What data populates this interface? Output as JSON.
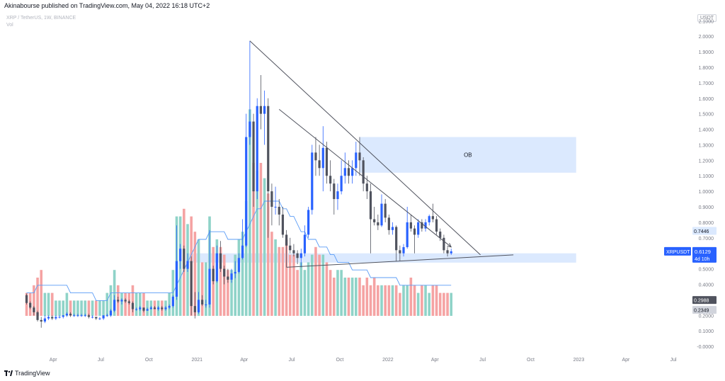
{
  "header": {
    "publisher": "Akinabourse published on TradingView.com, May 04, 2022 16:18 UTC+2",
    "symbol_line": "XRP / TetherUS, 1W, BINANCE",
    "vol_label": "Vol",
    "currency": "USDT"
  },
  "footer": {
    "brand": "TradingView"
  },
  "annotations": {
    "ob_label": "OB"
  },
  "badges": {
    "symbol": "XRPUSDT",
    "last_price": "0.6129",
    "countdown": "4d 10h",
    "level1": "0.7446",
    "level2": "0.2988",
    "level3": "0.2349"
  },
  "colors": {
    "up": "#2962ff",
    "down": "#50535e",
    "vol_up": "#8fd3c8",
    "vol_down": "#f5a3a3",
    "vol_ma": "#5b9cf6",
    "zone": "#dbe9fe",
    "trendline": "#50535e"
  },
  "chart_data": {
    "type": "candlestick",
    "title": "XRP / TetherUS, 1W, BINANCE",
    "price_axis": {
      "ticks": [
        "2.1000",
        "2.0000",
        "1.9000",
        "1.8000",
        "1.7000",
        "1.6000",
        "1.5000",
        "1.4000",
        "1.3000",
        "1.2000",
        "1.1000",
        "1.0000",
        "0.9000",
        "0.8000",
        "0.7000",
        "0.6000",
        "0.5000",
        "0.4000",
        "0.3000",
        "0.2000",
        "0.1000",
        "-0.0000"
      ],
      "range": [
        -0.05,
        2.17
      ]
    },
    "time_axis": {
      "labels": [
        "Apr",
        "Jul",
        "Oct",
        "2021",
        "Apr",
        "Jul",
        "Oct",
        "2022",
        "Apr",
        "Jul",
        "Oct",
        "2023",
        "Apr",
        "Jul"
      ]
    },
    "overlays": {
      "ob_zone": [
        1.12,
        1.35
      ],
      "support_zone": [
        0.54,
        0.6
      ],
      "descending_trendline": [
        {
          "t": "2021-04-12",
          "p": 1.97
        },
        {
          "t": "2022-06-27",
          "p": 0.59
        }
      ],
      "ascending_trendline": [
        {
          "t": "2021-06-21",
          "p": 0.51
        },
        {
          "t": "2022-08-29",
          "p": 0.59
        }
      ],
      "volume_trend_arrow": [
        {
          "t": "2021-06-07",
          "v": 0.27
        },
        {
          "t": "2022-05-02",
          "v": 0.09
        }
      ]
    },
    "ohlc": [
      [
        "2020-02-10",
        0.33,
        0.34,
        0.27,
        0.28
      ],
      [
        "2020-02-17",
        0.28,
        0.29,
        0.24,
        0.25
      ],
      [
        "2020-02-24",
        0.25,
        0.26,
        0.2,
        0.22
      ],
      [
        "2020-03-02",
        0.22,
        0.23,
        0.16,
        0.17
      ],
      [
        "2020-03-09",
        0.17,
        0.19,
        0.12,
        0.16
      ],
      [
        "2020-03-16",
        0.16,
        0.2,
        0.15,
        0.18
      ],
      [
        "2020-03-23",
        0.18,
        0.2,
        0.17,
        0.19
      ],
      [
        "2020-03-30",
        0.19,
        0.2,
        0.17,
        0.18
      ],
      [
        "2020-04-06",
        0.18,
        0.2,
        0.17,
        0.19
      ],
      [
        "2020-04-13",
        0.19,
        0.2,
        0.18,
        0.19
      ],
      [
        "2020-04-20",
        0.19,
        0.2,
        0.18,
        0.2
      ],
      [
        "2020-04-27",
        0.2,
        0.22,
        0.19,
        0.21
      ],
      [
        "2020-05-04",
        0.21,
        0.22,
        0.19,
        0.2
      ],
      [
        "2020-05-11",
        0.2,
        0.21,
        0.19,
        0.2
      ],
      [
        "2020-05-18",
        0.2,
        0.21,
        0.19,
        0.2
      ],
      [
        "2020-05-25",
        0.2,
        0.21,
        0.19,
        0.2
      ],
      [
        "2020-06-01",
        0.2,
        0.21,
        0.19,
        0.2
      ],
      [
        "2020-06-08",
        0.2,
        0.21,
        0.18,
        0.19
      ],
      [
        "2020-06-15",
        0.19,
        0.2,
        0.18,
        0.19
      ],
      [
        "2020-06-22",
        0.19,
        0.19,
        0.17,
        0.18
      ],
      [
        "2020-06-29",
        0.18,
        0.19,
        0.17,
        0.18
      ],
      [
        "2020-07-06",
        0.18,
        0.2,
        0.17,
        0.2
      ],
      [
        "2020-07-13",
        0.2,
        0.21,
        0.19,
        0.2
      ],
      [
        "2020-07-20",
        0.2,
        0.24,
        0.19,
        0.23
      ],
      [
        "2020-07-27",
        0.23,
        0.33,
        0.22,
        0.3
      ],
      [
        "2020-08-03",
        0.3,
        0.32,
        0.28,
        0.29
      ],
      [
        "2020-08-10",
        0.29,
        0.31,
        0.27,
        0.3
      ],
      [
        "2020-08-17",
        0.3,
        0.31,
        0.28,
        0.29
      ],
      [
        "2020-08-24",
        0.29,
        0.3,
        0.27,
        0.28
      ],
      [
        "2020-08-31",
        0.28,
        0.29,
        0.22,
        0.24
      ],
      [
        "2020-09-07",
        0.24,
        0.25,
        0.23,
        0.24
      ],
      [
        "2020-09-14",
        0.24,
        0.26,
        0.23,
        0.25
      ],
      [
        "2020-09-21",
        0.25,
        0.25,
        0.22,
        0.23
      ],
      [
        "2020-09-28",
        0.23,
        0.25,
        0.23,
        0.24
      ],
      [
        "2020-10-05",
        0.24,
        0.26,
        0.24,
        0.25
      ],
      [
        "2020-10-12",
        0.25,
        0.26,
        0.24,
        0.24
      ],
      [
        "2020-10-19",
        0.24,
        0.26,
        0.23,
        0.25
      ],
      [
        "2020-10-26",
        0.25,
        0.26,
        0.23,
        0.24
      ],
      [
        "2020-11-02",
        0.24,
        0.26,
        0.23,
        0.25
      ],
      [
        "2020-11-09",
        0.25,
        0.27,
        0.24,
        0.26
      ],
      [
        "2020-11-16",
        0.26,
        0.33,
        0.25,
        0.32
      ],
      [
        "2020-11-23",
        0.32,
        0.78,
        0.3,
        0.55
      ],
      [
        "2020-11-30",
        0.55,
        0.66,
        0.5,
        0.63
      ],
      [
        "2020-12-07",
        0.63,
        0.65,
        0.48,
        0.5
      ],
      [
        "2020-12-14",
        0.5,
        0.6,
        0.48,
        0.55
      ],
      [
        "2020-12-21",
        0.55,
        0.58,
        0.2,
        0.26
      ],
      [
        "2020-12-28",
        0.26,
        0.35,
        0.18,
        0.22
      ],
      [
        "2021-01-04",
        0.22,
        0.35,
        0.21,
        0.3
      ],
      [
        "2021-01-11",
        0.3,
        0.33,
        0.26,
        0.27
      ],
      [
        "2021-01-18",
        0.27,
        0.3,
        0.25,
        0.27
      ],
      [
        "2021-01-25",
        0.27,
        0.75,
        0.25,
        0.5
      ],
      [
        "2021-02-01",
        0.5,
        0.52,
        0.4,
        0.42
      ],
      [
        "2021-02-08",
        0.42,
        0.65,
        0.41,
        0.6
      ],
      [
        "2021-02-15",
        0.6,
        0.68,
        0.48,
        0.5
      ],
      [
        "2021-02-22",
        0.5,
        0.52,
        0.4,
        0.45
      ],
      [
        "2021-03-01",
        0.45,
        0.5,
        0.41,
        0.43
      ],
      [
        "2021-03-08",
        0.43,
        0.5,
        0.41,
        0.47
      ],
      [
        "2021-03-15",
        0.47,
        0.55,
        0.44,
        0.48
      ],
      [
        "2021-03-22",
        0.48,
        0.6,
        0.47,
        0.57
      ],
      [
        "2021-03-29",
        0.57,
        0.82,
        0.56,
        0.65
      ],
      [
        "2021-04-05",
        0.65,
        1.5,
        0.64,
        1.35
      ],
      [
        "2021-04-12",
        1.35,
        1.97,
        1.3,
        1.45
      ],
      [
        "2021-04-19",
        1.45,
        1.5,
        0.9,
        1.0
      ],
      [
        "2021-04-26",
        1.0,
        1.6,
        0.95,
        1.55
      ],
      [
        "2021-05-03",
        1.55,
        1.75,
        1.4,
        1.5
      ],
      [
        "2021-05-10",
        1.5,
        1.65,
        1.3,
        1.55
      ],
      [
        "2021-05-17",
        1.55,
        1.6,
        0.7,
        1.0
      ],
      [
        "2021-05-24",
        1.0,
        1.05,
        0.78,
        0.9
      ],
      [
        "2021-05-31",
        0.9,
        1.03,
        0.85,
        0.9
      ],
      [
        "2021-06-07",
        0.9,
        0.95,
        0.78,
        0.85
      ],
      [
        "2021-06-14",
        0.85,
        0.9,
        0.7,
        0.72
      ],
      [
        "2021-06-21",
        0.72,
        0.75,
        0.51,
        0.65
      ],
      [
        "2021-06-28",
        0.65,
        0.7,
        0.6,
        0.62
      ],
      [
        "2021-07-05",
        0.62,
        0.66,
        0.58,
        0.6
      ],
      [
        "2021-07-12",
        0.6,
        0.62,
        0.53,
        0.57
      ],
      [
        "2021-07-19",
        0.57,
        0.63,
        0.51,
        0.6
      ],
      [
        "2021-07-26",
        0.6,
        0.78,
        0.58,
        0.72
      ],
      [
        "2021-08-02",
        0.72,
        0.9,
        0.7,
        0.88
      ],
      [
        "2021-08-09",
        0.88,
        1.3,
        0.85,
        1.25
      ],
      [
        "2021-08-16",
        1.25,
        1.35,
        1.1,
        1.2
      ],
      [
        "2021-08-23",
        1.2,
        1.3,
        1.1,
        1.15
      ],
      [
        "2021-08-30",
        1.15,
        1.42,
        1.0,
        1.28
      ],
      [
        "2021-09-06",
        1.28,
        1.32,
        1.05,
        1.1
      ],
      [
        "2021-09-13",
        1.1,
        1.2,
        1.0,
        1.05
      ],
      [
        "2021-09-20",
        1.05,
        1.08,
        0.85,
        0.95
      ],
      [
        "2021-09-27",
        0.95,
        1.05,
        0.88,
        1.0
      ],
      [
        "2021-10-04",
        1.0,
        1.2,
        0.98,
        1.1
      ],
      [
        "2021-10-11",
        1.1,
        1.25,
        1.05,
        1.15
      ],
      [
        "2021-10-18",
        1.15,
        1.2,
        1.05,
        1.1
      ],
      [
        "2021-10-25",
        1.1,
        1.2,
        1.05,
        1.15
      ],
      [
        "2021-11-01",
        1.15,
        1.32,
        1.1,
        1.25
      ],
      [
        "2021-11-08",
        1.25,
        1.35,
        1.1,
        1.2
      ],
      [
        "2021-11-15",
        1.2,
        1.22,
        1.0,
        1.05
      ],
      [
        "2021-11-22",
        1.05,
        1.1,
        0.95,
        1.0
      ],
      [
        "2021-11-29",
        1.0,
        1.05,
        0.6,
        0.82
      ],
      [
        "2021-12-06",
        0.82,
        0.9,
        0.78,
        0.8
      ],
      [
        "2021-12-13",
        0.8,
        0.85,
        0.75,
        0.78
      ],
      [
        "2021-12-20",
        0.78,
        0.98,
        0.77,
        0.92
      ],
      [
        "2021-12-27",
        0.92,
        0.95,
        0.8,
        0.83
      ],
      [
        "2022-01-03",
        0.83,
        0.85,
        0.72,
        0.75
      ],
      [
        "2022-01-10",
        0.75,
        0.8,
        0.72,
        0.77
      ],
      [
        "2022-01-17",
        0.77,
        0.78,
        0.55,
        0.62
      ],
      [
        "2022-01-24",
        0.62,
        0.65,
        0.55,
        0.6
      ],
      [
        "2022-01-31",
        0.6,
        0.66,
        0.58,
        0.64
      ],
      [
        "2022-02-07",
        0.64,
        0.9,
        0.63,
        0.8
      ],
      [
        "2022-02-14",
        0.8,
        0.85,
        0.74,
        0.76
      ],
      [
        "2022-02-21",
        0.76,
        0.78,
        0.6,
        0.72
      ],
      [
        "2022-02-28",
        0.72,
        0.82,
        0.7,
        0.8
      ],
      [
        "2022-03-07",
        0.8,
        0.82,
        0.74,
        0.76
      ],
      [
        "2022-03-14",
        0.76,
        0.82,
        0.74,
        0.8
      ],
      [
        "2022-03-21",
        0.8,
        0.85,
        0.78,
        0.84
      ],
      [
        "2022-03-28",
        0.84,
        0.92,
        0.8,
        0.82
      ],
      [
        "2022-04-04",
        0.82,
        0.84,
        0.72,
        0.74
      ],
      [
        "2022-04-11",
        0.74,
        0.76,
        0.68,
        0.7
      ],
      [
        "2022-04-18",
        0.7,
        0.72,
        0.6,
        0.62
      ],
      [
        "2022-04-25",
        0.62,
        0.64,
        0.58,
        0.6
      ],
      [
        "2022-05-02",
        0.6,
        0.63,
        0.59,
        0.6129
      ]
    ],
    "volume": {
      "scale": [
        -0.05,
        0.4
      ],
      "bars": [
        0.03,
        0.03,
        0.04,
        0.05,
        0.06,
        0.03,
        0.03,
        0.03,
        0.02,
        0.02,
        0.02,
        0.03,
        0.02,
        0.02,
        0.02,
        0.02,
        0.02,
        0.02,
        0.02,
        0.02,
        0.02,
        0.02,
        0.03,
        0.04,
        0.06,
        0.04,
        0.03,
        0.03,
        0.03,
        0.04,
        0.03,
        0.03,
        0.03,
        0.02,
        0.02,
        0.02,
        0.02,
        0.02,
        0.02,
        0.03,
        0.06,
        0.13,
        0.13,
        0.14,
        0.12,
        0.13,
        0.11,
        0.1,
        0.07,
        0.07,
        0.13,
        0.09,
        0.1,
        0.09,
        0.08,
        0.06,
        0.06,
        0.08,
        0.1,
        0.11,
        0.15,
        0.27,
        0.2,
        0.19,
        0.2,
        0.18,
        0.16,
        0.11,
        0.1,
        0.09,
        0.09,
        0.1,
        0.08,
        0.08,
        0.06,
        0.07,
        0.06,
        0.07,
        0.08,
        0.09,
        0.08,
        0.08,
        0.07,
        0.06,
        0.05,
        0.06,
        0.06,
        0.05,
        0.05,
        0.05,
        0.05,
        0.05,
        0.04,
        0.05,
        0.04,
        0.05,
        0.04,
        0.04,
        0.04,
        0.04,
        0.04,
        0.04,
        0.03,
        0.04,
        0.04,
        0.05,
        0.04,
        0.03,
        0.04,
        0.04,
        0.03,
        0.04,
        0.04,
        0.03,
        0.03,
        0.03,
        0.03
      ],
      "ma": [
        0.03,
        0.03,
        0.03,
        0.04,
        0.04,
        0.04,
        0.04,
        0.04,
        0.04,
        0.04,
        0.04,
        0.04,
        0.03,
        0.03,
        0.03,
        0.03,
        0.03,
        0.03,
        0.03,
        0.02,
        0.02,
        0.02,
        0.02,
        0.03,
        0.03,
        0.03,
        0.03,
        0.03,
        0.03,
        0.03,
        0.03,
        0.03,
        0.03,
        0.03,
        0.03,
        0.03,
        0.03,
        0.03,
        0.03,
        0.03,
        0.03,
        0.04,
        0.05,
        0.06,
        0.07,
        0.08,
        0.09,
        0.1,
        0.1,
        0.1,
        0.11,
        0.11,
        0.11,
        0.11,
        0.11,
        0.1,
        0.1,
        0.1,
        0.1,
        0.1,
        0.11,
        0.12,
        0.13,
        0.14,
        0.14,
        0.15,
        0.15,
        0.15,
        0.15,
        0.15,
        0.14,
        0.14,
        0.13,
        0.13,
        0.12,
        0.11,
        0.11,
        0.1,
        0.1,
        0.1,
        0.09,
        0.09,
        0.09,
        0.08,
        0.08,
        0.07,
        0.07,
        0.07,
        0.07,
        0.06,
        0.06,
        0.06,
        0.06,
        0.06,
        0.05,
        0.05,
        0.05,
        0.05,
        0.05,
        0.05,
        0.05,
        0.05,
        0.04,
        0.04,
        0.04,
        0.04,
        0.04,
        0.04,
        0.04,
        0.04,
        0.04,
        0.04,
        0.04,
        0.04,
        0.04,
        0.04,
        0.04
      ]
    }
  }
}
